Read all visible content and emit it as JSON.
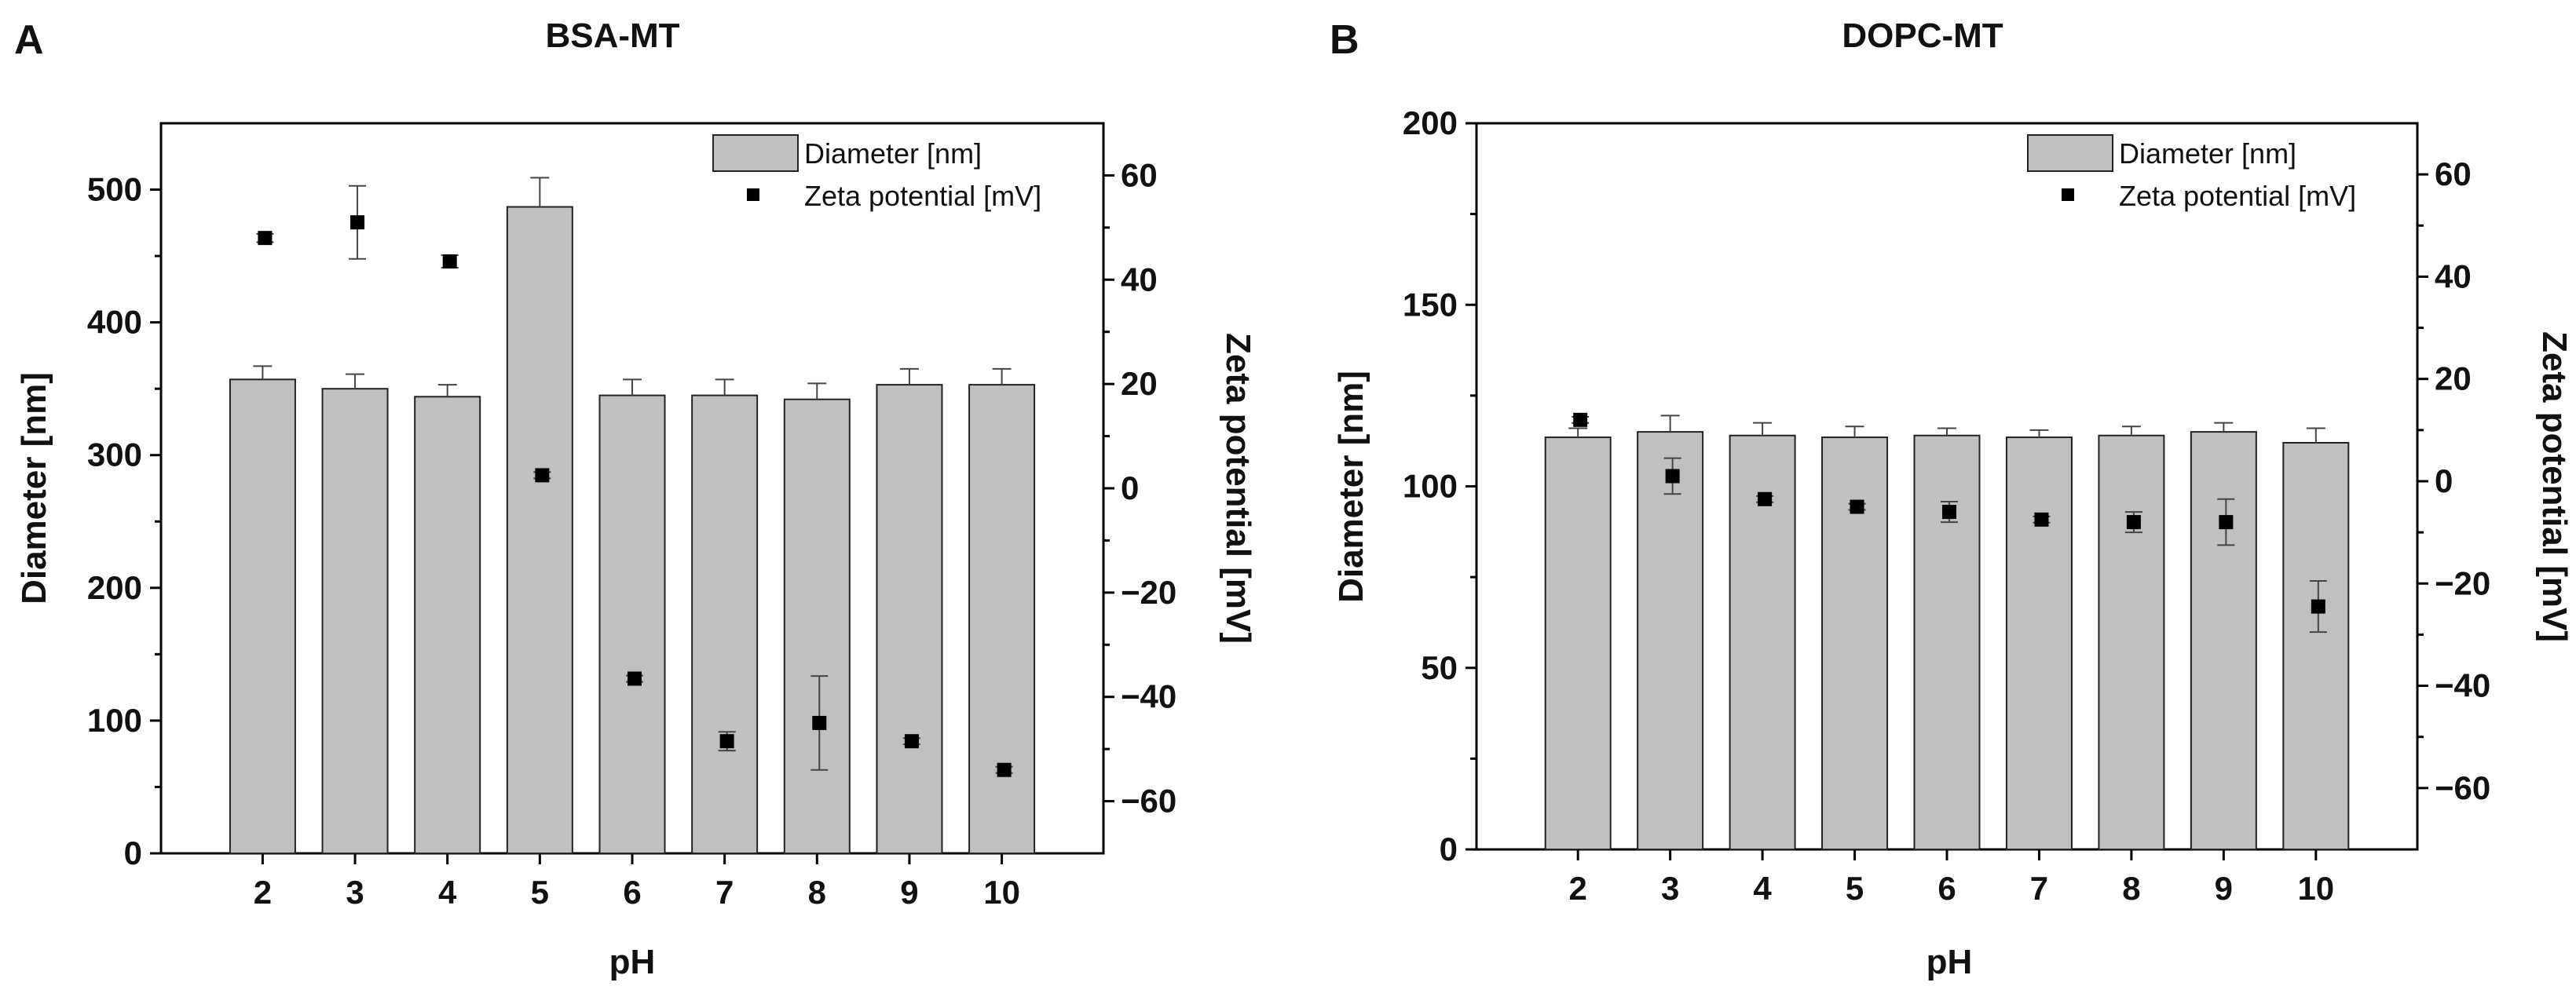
{
  "chart_data": [
    {
      "type": "bar",
      "panel_label": "A",
      "title": "BSA-MT",
      "xlabel": "pH",
      "ylabel": "Diameter [nm]",
      "y2label": "Zeta potential [mV]",
      "categories": [
        "2",
        "3",
        "4",
        "5",
        "6",
        "7",
        "8",
        "9",
        "10"
      ],
      "ylim": [
        0,
        550
      ],
      "yticks": [
        0,
        100,
        200,
        300,
        400,
        500
      ],
      "y2lim": [
        -70,
        70
      ],
      "y2ticks": [
        -60,
        -40,
        -20,
        0,
        20,
        40,
        60
      ],
      "legend_position": "top-right",
      "series": [
        {
          "name": "Diameter [nm]",
          "kind": "bar",
          "axis": "left",
          "values": [
            357,
            350,
            344,
            487,
            345,
            345,
            342,
            353,
            353
          ],
          "errors": [
            10,
            11,
            9,
            22,
            12,
            12,
            12,
            12,
            12
          ]
        },
        {
          "name": "Zeta potential [mV]",
          "kind": "scatter",
          "axis": "right",
          "values": [
            48,
            51,
            43.5,
            2.5,
            -36.5,
            -48.5,
            -45,
            -48.5,
            -54
          ],
          "errors": [
            0.8,
            7,
            1.2,
            0.6,
            0.6,
            1.8,
            9,
            0.6,
            0.6
          ]
        }
      ]
    },
    {
      "type": "bar",
      "panel_label": "B",
      "title": "DOPC-MT",
      "xlabel": "pH",
      "ylabel": "Diameter [nm]",
      "y2label": "Zeta potential [mV]",
      "categories": [
        "2",
        "3",
        "4",
        "5",
        "6",
        "7",
        "8",
        "9",
        "10"
      ],
      "ylim": [
        0,
        200
      ],
      "yticks": [
        0,
        50,
        100,
        150,
        200
      ],
      "y2lim": [
        -72,
        70
      ],
      "y2ticks": [
        -60,
        -40,
        -20,
        0,
        20,
        40,
        60
      ],
      "legend_position": "top-right",
      "series": [
        {
          "name": "Diameter [nm]",
          "kind": "bar",
          "axis": "left",
          "values": [
            113.5,
            115,
            114,
            113.5,
            114,
            113.5,
            114,
            115,
            112
          ],
          "errors": [
            2.5,
            4.5,
            3.5,
            3,
            2,
            2,
            2.5,
            2.5,
            4
          ]
        },
        {
          "name": "Zeta potential [mV]",
          "kind": "scatter",
          "axis": "right",
          "values": [
            12,
            1,
            -3.5,
            -5,
            -6,
            -7.5,
            -8,
            -8,
            -24.5
          ],
          "errors": [
            0.6,
            3.5,
            0.6,
            0.6,
            2,
            0.6,
            2,
            4.5,
            5
          ]
        }
      ]
    }
  ]
}
